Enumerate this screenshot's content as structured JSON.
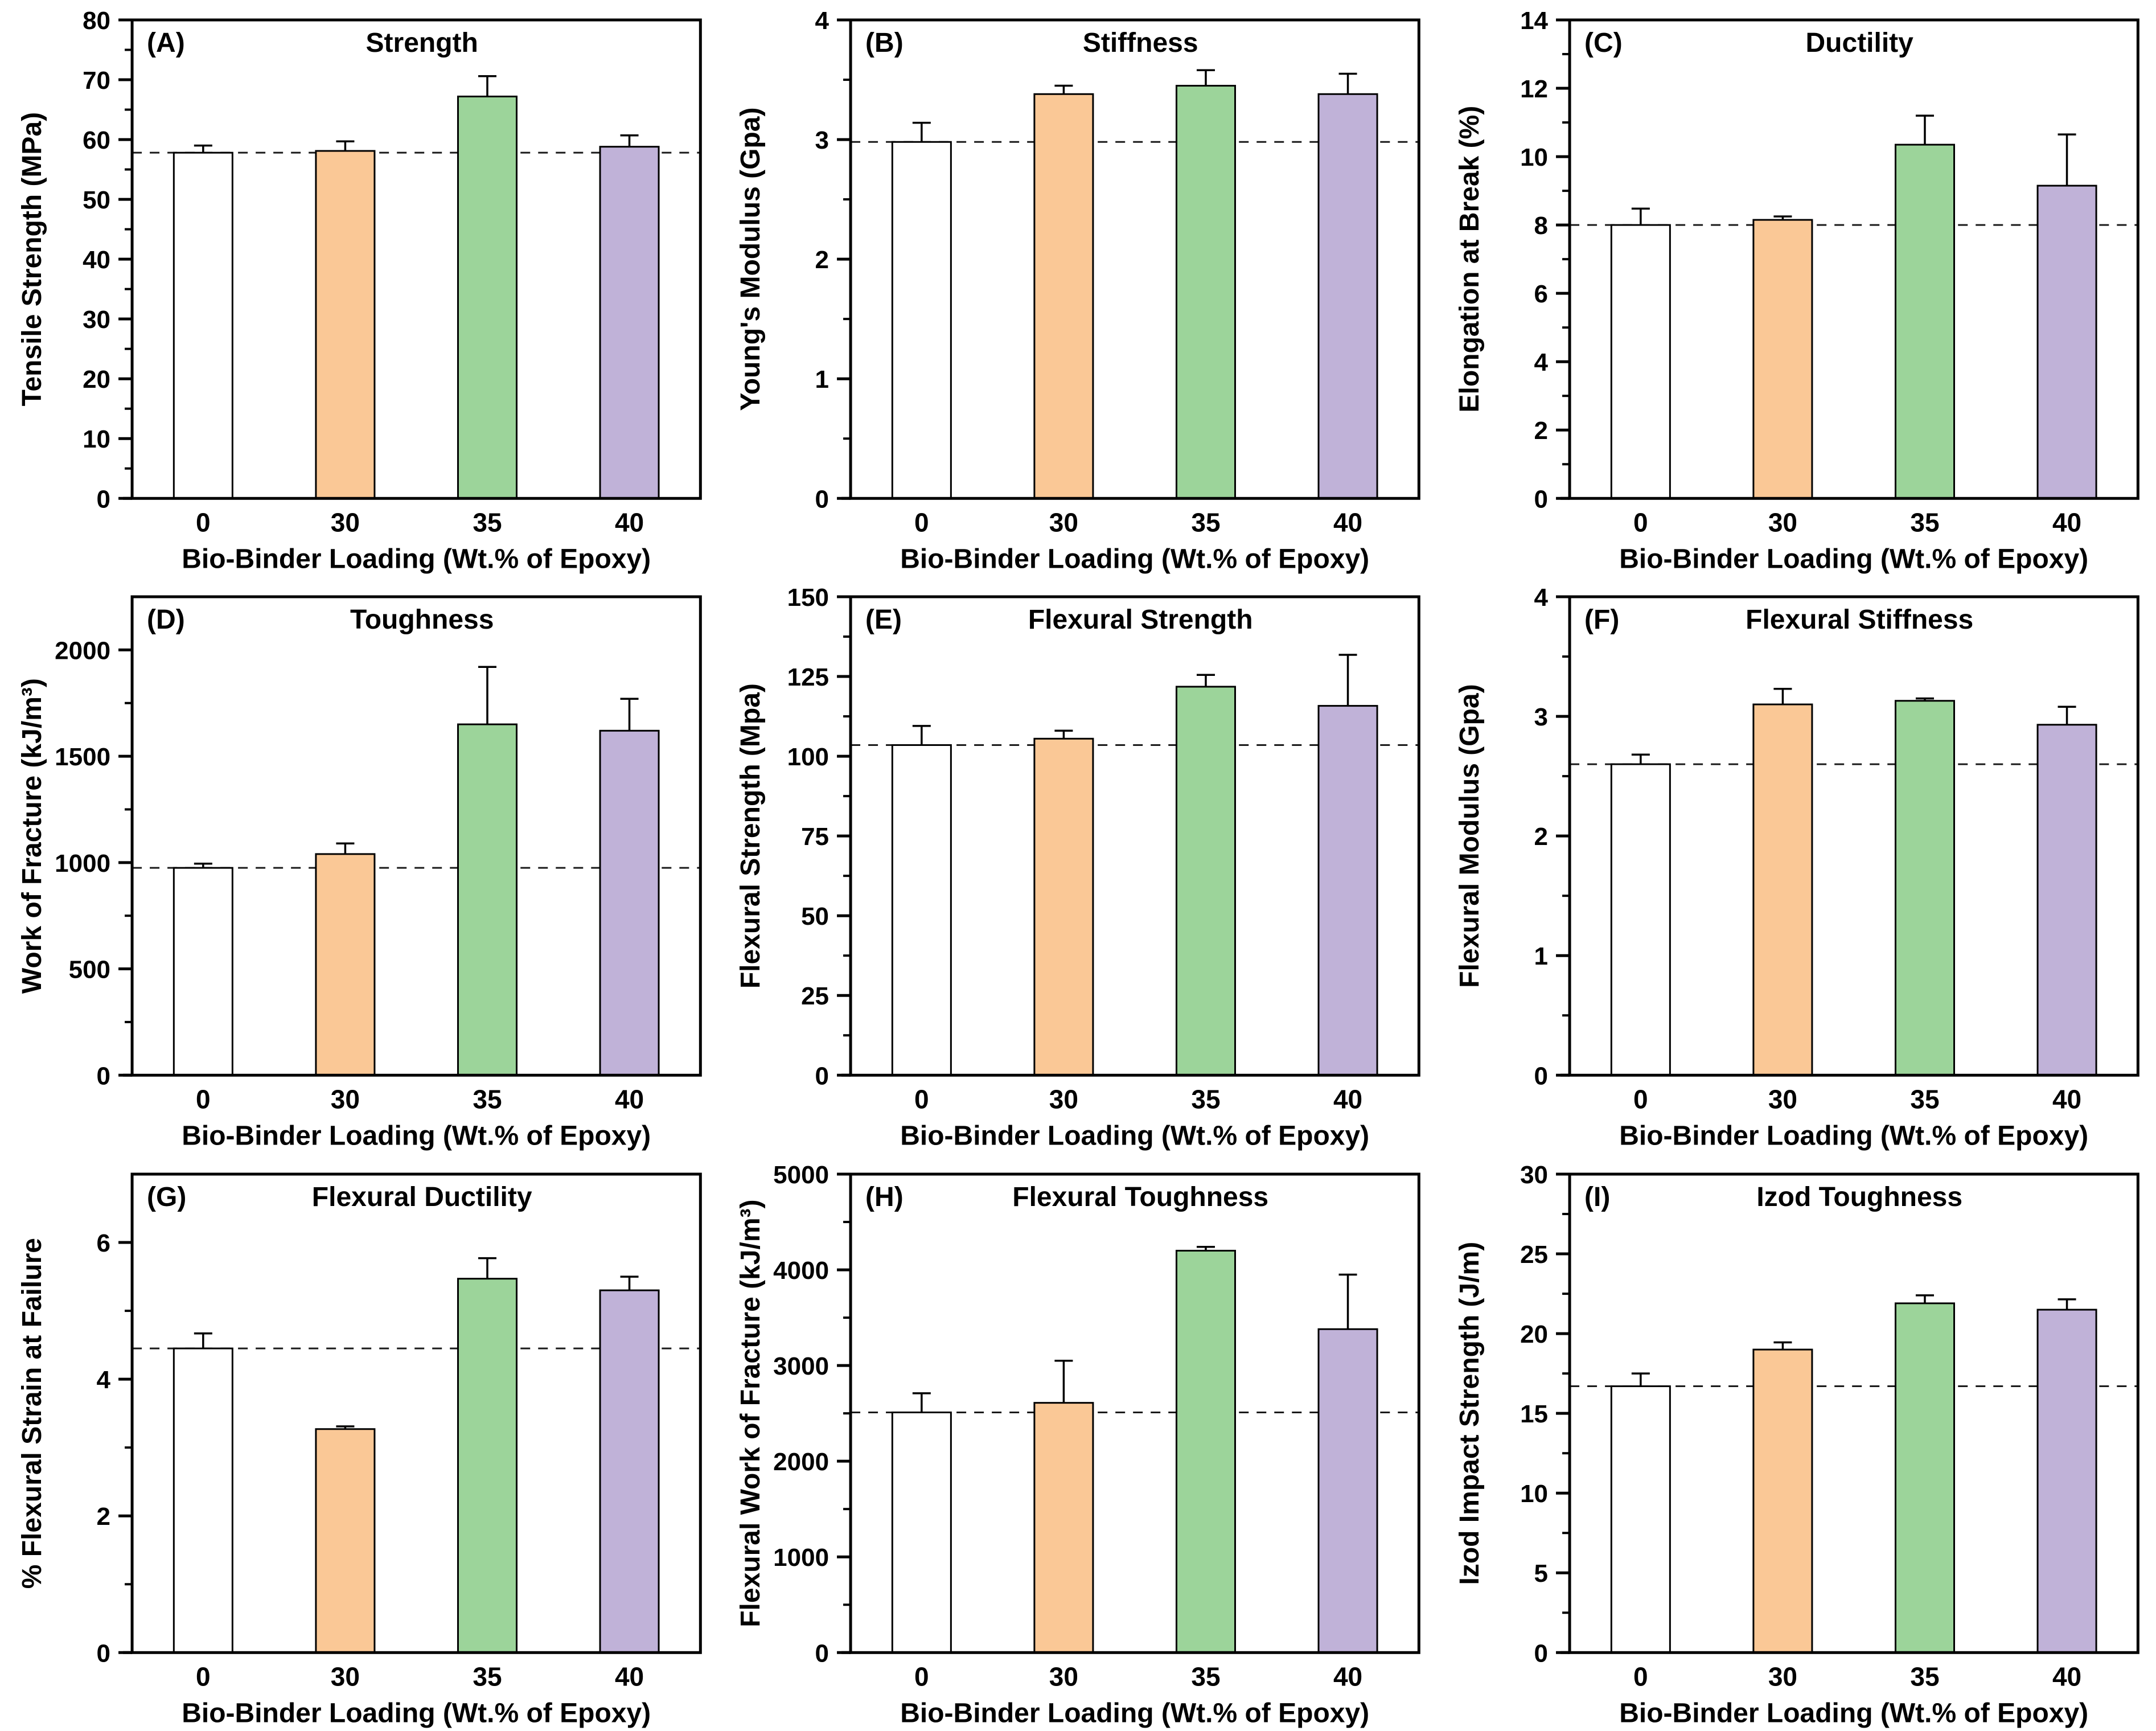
{
  "shared": {
    "xlabel": "Bio-Binder Loading (Wt.% of Epoxy)",
    "categories": [
      "0",
      "30",
      "35",
      "40"
    ],
    "bar_colors": [
      "#FFFFFF",
      "#FAC896",
      "#9CD49A",
      "#C0B2D8"
    ],
    "bar_edge_color": "#000000",
    "reference_line_color": "#1a1a1a",
    "axis_color": "#000000",
    "legend": "none",
    "grid": "off"
  },
  "chart_data": [
    {
      "type": "bar",
      "panel": "(A)",
      "title": "Strength",
      "ylabel": "Tensile Strength (MPa)",
      "ylim": [
        0,
        80
      ],
      "ytick_step": 10,
      "categories": [
        "0",
        "30",
        "35",
        "40"
      ],
      "values": [
        57.8,
        58.1,
        67.2,
        58.8
      ],
      "errors": [
        1.2,
        1.6,
        3.4,
        1.9
      ],
      "ref_line": 57.8
    },
    {
      "type": "bar",
      "panel": "(B)",
      "title": "Stiffness",
      "ylabel": "Young's Modulus (Gpa)",
      "ylim": [
        0,
        4
      ],
      "ytick_step": 1,
      "categories": [
        "0",
        "30",
        "35",
        "40"
      ],
      "values": [
        2.98,
        3.38,
        3.45,
        3.38
      ],
      "errors": [
        0.16,
        0.07,
        0.13,
        0.17
      ],
      "ref_line": 2.98
    },
    {
      "type": "bar",
      "panel": "(C)",
      "title": "Ductility",
      "ylabel": "Elongation at Break (%)",
      "ylim": [
        0,
        14
      ],
      "ytick_step": 2,
      "categories": [
        "0",
        "30",
        "35",
        "40"
      ],
      "values": [
        8.0,
        8.15,
        10.35,
        9.15
      ],
      "errors": [
        0.48,
        0.1,
        0.85,
        1.5
      ],
      "ref_line": 8.0
    },
    {
      "type": "bar",
      "panel": "(D)",
      "title": "Toughness",
      "ylabel": "Work of Fracture (kJ/m³)",
      "ylim": [
        0,
        2250
      ],
      "ytick_step": 500,
      "categories": [
        "0",
        "30",
        "35",
        "40"
      ],
      "values": [
        975,
        1040,
        1650,
        1620
      ],
      "errors": [
        20,
        50,
        270,
        150
      ],
      "ref_line": 975
    },
    {
      "type": "bar",
      "panel": "(E)",
      "title": "Flexural Strength",
      "ylabel": "Flexural Strength (Mpa)",
      "ylim": [
        0,
        150
      ],
      "ytick_step": 25,
      "categories": [
        "0",
        "30",
        "35",
        "40"
      ],
      "values": [
        103.5,
        105.5,
        121.8,
        115.8
      ],
      "errors": [
        6,
        2.5,
        3.7,
        16
      ],
      "ref_line": 103.5
    },
    {
      "type": "bar",
      "panel": "(F)",
      "title": "Flexural Stiffness",
      "ylabel": "Flexural Modulus (Gpa)",
      "ylim": [
        0,
        4
      ],
      "ytick_step": 1,
      "categories": [
        "0",
        "30",
        "35",
        "40"
      ],
      "values": [
        2.6,
        3.1,
        3.13,
        2.93
      ],
      "errors": [
        0.08,
        0.13,
        0.02,
        0.15
      ],
      "ref_line": 2.6
    },
    {
      "type": "bar",
      "panel": "(G)",
      "title": "Flexural Ductility",
      "ylabel": "% Flexural Strain at Failure",
      "ylim": [
        0,
        7
      ],
      "ytick_step": 2,
      "categories": [
        "0",
        "30",
        "35",
        "40"
      ],
      "values": [
        4.45,
        3.27,
        5.47,
        5.3
      ],
      "errors": [
        0.22,
        0.04,
        0.3,
        0.2
      ],
      "ref_line": 4.45
    },
    {
      "type": "bar",
      "panel": "(H)",
      "title": "Flexural Toughness",
      "ylabel": "Flexural Work of Fracture (kJ/m³)",
      "ylim": [
        0,
        5000
      ],
      "ytick_step": 1000,
      "categories": [
        "0",
        "30",
        "35",
        "40"
      ],
      "values": [
        2510,
        2610,
        4200,
        3380
      ],
      "errors": [
        200,
        440,
        40,
        570
      ],
      "ref_line": 2510
    },
    {
      "type": "bar",
      "panel": "(I)",
      "title": "Izod Toughness",
      "ylabel": "Izod Impact Strength (J/m)",
      "ylim": [
        0,
        30
      ],
      "ytick_step": 5,
      "categories": [
        "0",
        "30",
        "35",
        "40"
      ],
      "values": [
        16.7,
        19.0,
        21.9,
        21.5
      ],
      "errors": [
        0.8,
        0.45,
        0.5,
        0.65
      ],
      "ref_line": 16.7
    }
  ]
}
